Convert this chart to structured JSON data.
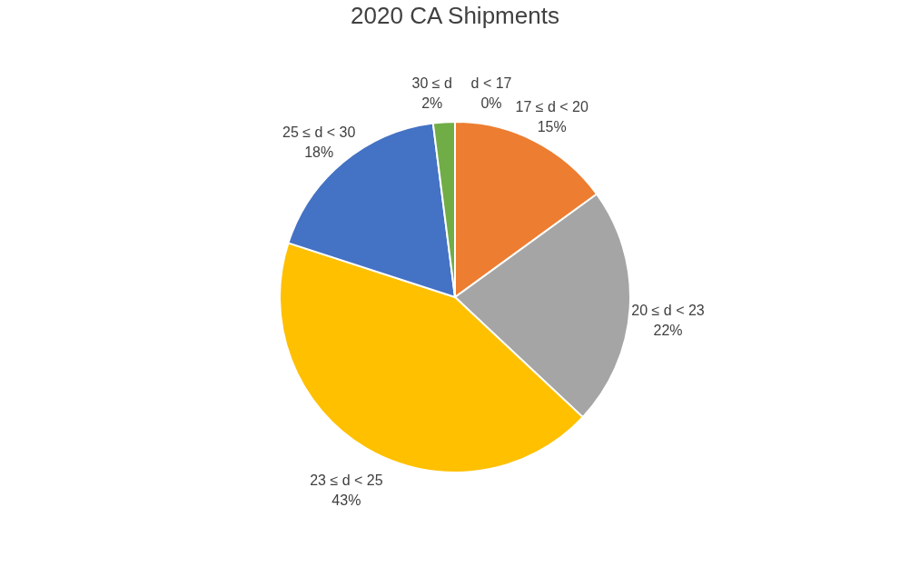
{
  "chart_data": {
    "type": "pie",
    "title": "2020 CA Shipments",
    "categories": [
      "d < 17",
      "17 ≤ d < 20",
      "20 ≤ d < 23",
      "23 ≤ d < 25",
      "25 ≤ d < 30",
      "30 ≤ d"
    ],
    "values": [
      0,
      15,
      22,
      43,
      18,
      2
    ],
    "colors": [
      "#5b9bd5",
      "#ed7d31",
      "#a5a5a5",
      "#ffc000",
      "#4472c4",
      "#70ad47"
    ],
    "value_labels": [
      "0%",
      "15%",
      "22%",
      "43%",
      "18%",
      "2%"
    ],
    "legend": false
  }
}
